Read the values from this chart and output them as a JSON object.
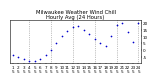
{
  "title": "Milwaukee Weather Wind Chill\nHourly Avg (24 Hours)",
  "title_fontsize": 3.8,
  "x": [
    1,
    2,
    3,
    4,
    5,
    6,
    7,
    8,
    9,
    10,
    11,
    12,
    13,
    14,
    15,
    16,
    17,
    18,
    19,
    20,
    21,
    22,
    23,
    24
  ],
  "y": [
    -3.5,
    -5.5,
    -7,
    -8,
    -8.5,
    -7,
    -4,
    0,
    5,
    10,
    14,
    17,
    17.5,
    15,
    12,
    8,
    5,
    3,
    10,
    18,
    20,
    13,
    6,
    20
  ],
  "dot_color": "#0000cc",
  "dot_size": 1.5,
  "bg_color": "#ffffff",
  "grid_color": "#888888",
  "ylim": [
    -10,
    22
  ],
  "yticks": [
    -5,
    0,
    5,
    10,
    15,
    20
  ],
  "ytick_labels": [
    "-5",
    "0",
    "5",
    "10",
    "15",
    "20"
  ],
  "xticks": [
    1,
    2,
    3,
    4,
    5,
    6,
    7,
    8,
    9,
    10,
    11,
    12,
    13,
    14,
    15,
    16,
    17,
    18,
    19,
    20,
    21,
    22,
    23,
    24
  ],
  "xtick_row1": [
    "1",
    "2",
    "3",
    "4",
    "5",
    "6",
    "7",
    "8",
    "9",
    "10",
    "11",
    "12",
    "13",
    "14",
    "15",
    "16",
    "17",
    "18",
    "19",
    "20",
    "21",
    "22",
    "23",
    "24"
  ],
  "xtick_row2": [
    "5",
    "5",
    "5",
    "5",
    "5",
    "5",
    "5",
    "5",
    "5",
    "5",
    "5",
    "5",
    "5",
    "5",
    "5",
    "5",
    "5",
    "5",
    "5",
    "5",
    "5",
    "5",
    "5",
    "5"
  ],
  "vline_positions": [
    4,
    8,
    12,
    16,
    20,
    24
  ],
  "tick_fontsize": 3.0,
  "title_color": "#000000"
}
